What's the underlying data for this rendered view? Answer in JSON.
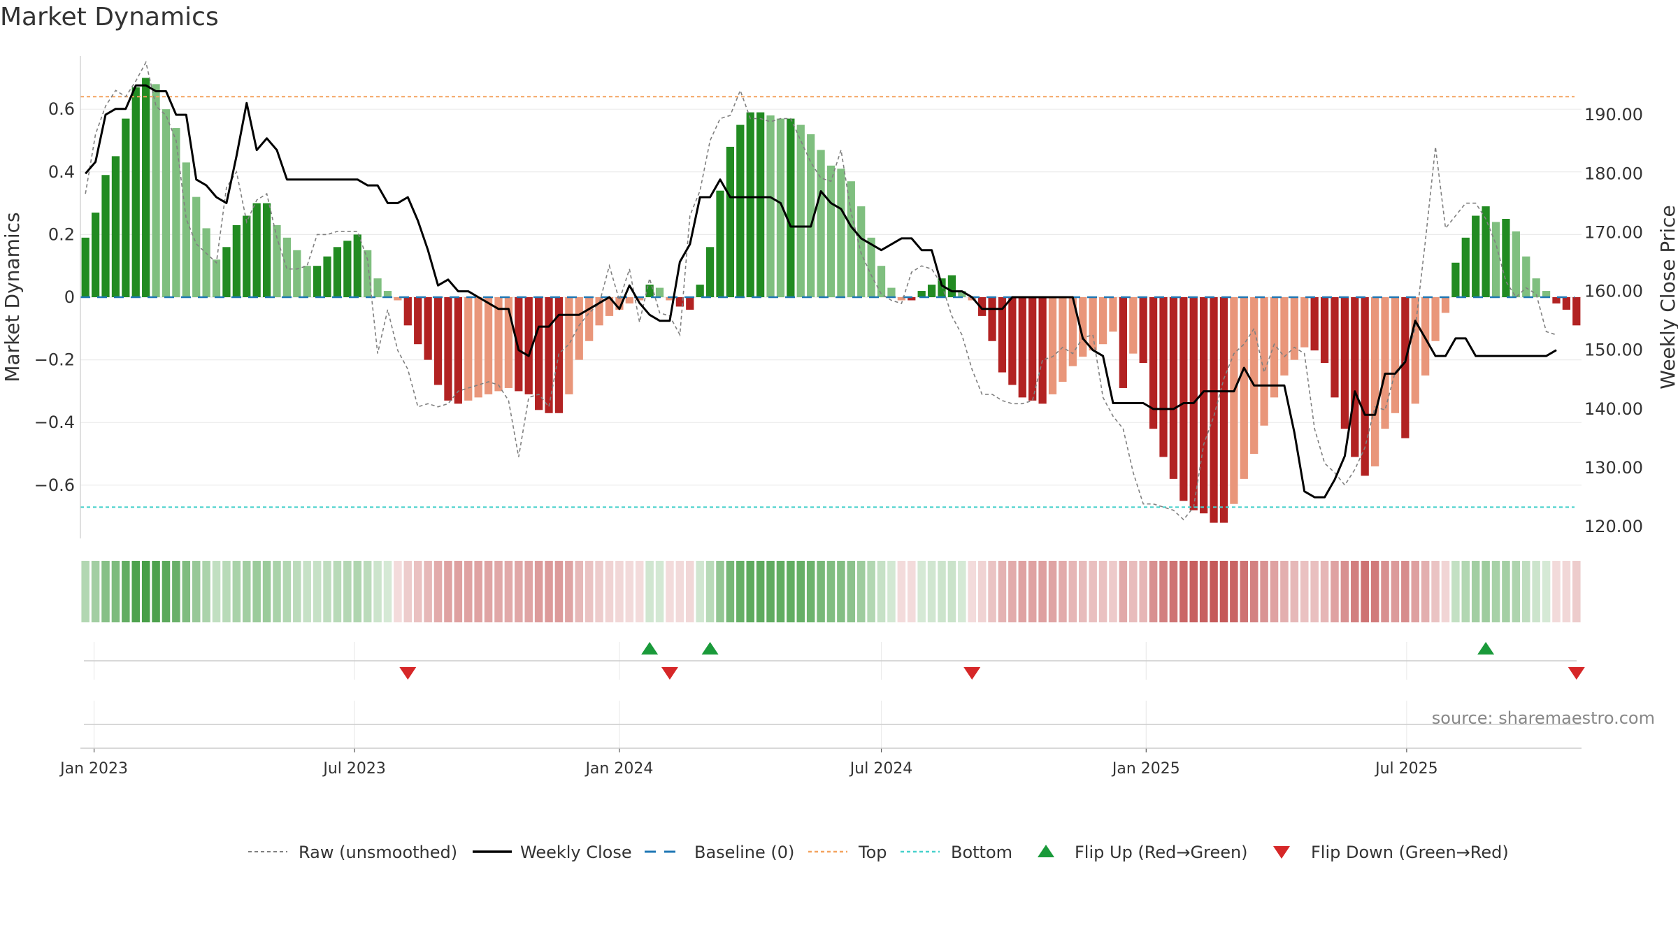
{
  "title": "Market Dynamics",
  "source": "source: sharemaestro.com",
  "colors": {
    "up_strong": "#228b22",
    "up_weak": "#7fbf7f",
    "down_strong": "#b22222",
    "down_weak": "#e9967a",
    "close": "#000000",
    "raw": "#808080",
    "baseline": "#1f77b4",
    "top": "#f4a460",
    "bottom": "#48d1cc",
    "flip_up": "#1a9a3a",
    "flip_down": "#d62728"
  },
  "chart_data": {
    "type": "bar",
    "x_axis": {
      "type": "date",
      "start": "2022-12-26",
      "step_days": 7,
      "ticks": [
        {
          "date": "2023-01-01",
          "label": "Jan 2023"
        },
        {
          "date": "2023-07-01",
          "label": "Jul 2023"
        },
        {
          "date": "2024-01-01",
          "label": "Jan 2024"
        },
        {
          "date": "2024-07-01",
          "label": "Jul 2024"
        },
        {
          "date": "2025-01-01",
          "label": "Jan 2025"
        },
        {
          "date": "2025-07-01",
          "label": "Jul 2025"
        }
      ]
    },
    "y_left": {
      "label": "Market Dynamics",
      "range": [
        -0.77,
        0.77
      ],
      "ticks": [
        {
          "value": 0.6,
          "label": "0.6"
        },
        {
          "value": 0.4,
          "label": "0.4"
        },
        {
          "value": 0.2,
          "label": "0.2"
        },
        {
          "value": 0,
          "label": "0"
        },
        {
          "value": -0.2,
          "label": "−0.2"
        },
        {
          "value": -0.4,
          "label": "−0.4"
        },
        {
          "value": -0.6,
          "label": "−0.6"
        }
      ]
    },
    "y_right": {
      "label": "Weekly Close Price",
      "range": [
        118,
        200
      ],
      "ticks": [
        {
          "value": 190,
          "label": "190.00"
        },
        {
          "value": 180,
          "label": "180.00"
        },
        {
          "value": 170,
          "label": "170.00"
        },
        {
          "value": 160,
          "label": "160.00"
        },
        {
          "value": 150,
          "label": "150.00"
        },
        {
          "value": 140,
          "label": "140.00"
        },
        {
          "value": 130,
          "label": "130.00"
        },
        {
          "value": 120,
          "label": "120.00"
        }
      ]
    },
    "top_level": 0.64,
    "bottom_level": -0.67,
    "baseline": 0,
    "grid": true,
    "series": [
      {
        "name": "Market Dynamics",
        "kind": "bar",
        "values": [
          0.19,
          0.27,
          0.39,
          0.45,
          0.57,
          0.67,
          0.7,
          0.68,
          0.6,
          0.54,
          0.43,
          0.32,
          0.22,
          0.12,
          0.16,
          0.23,
          0.26,
          0.3,
          0.3,
          0.23,
          0.19,
          0.15,
          0.1,
          0.1,
          0.13,
          0.16,
          0.18,
          0.2,
          0.15,
          0.06,
          0.02,
          -0.01,
          -0.09,
          -0.15,
          -0.2,
          -0.28,
          -0.33,
          -0.34,
          -0.33,
          -0.32,
          -0.31,
          -0.3,
          -0.29,
          -0.3,
          -0.31,
          -0.36,
          -0.37,
          -0.37,
          -0.31,
          -0.2,
          -0.14,
          -0.09,
          -0.06,
          -0.04,
          -0.02,
          -0.01,
          0.04,
          0.03,
          -0.01,
          -0.03,
          -0.04,
          0.04,
          0.16,
          0.34,
          0.48,
          0.55,
          0.59,
          0.59,
          0.58,
          0.57,
          0.57,
          0.55,
          0.52,
          0.47,
          0.42,
          0.41,
          0.37,
          0.29,
          0.19,
          0.1,
          0.03,
          -0.01,
          -0.01,
          0.02,
          0.04,
          0.06,
          0.07,
          0.02,
          -0.01,
          -0.06,
          -0.14,
          -0.24,
          -0.28,
          -0.32,
          -0.33,
          -0.34,
          -0.31,
          -0.27,
          -0.22,
          -0.19,
          -0.17,
          -0.15,
          -0.11,
          -0.29,
          -0.18,
          -0.21,
          -0.42,
          -0.51,
          -0.58,
          -0.65,
          -0.68,
          -0.69,
          -0.72,
          -0.72,
          -0.66,
          -0.58,
          -0.5,
          -0.41,
          -0.32,
          -0.25,
          -0.2,
          -0.16,
          -0.17,
          -0.21,
          -0.32,
          -0.42,
          -0.51,
          -0.57,
          -0.54,
          -0.42,
          -0.37,
          -0.45,
          -0.34,
          -0.25,
          -0.14,
          -0.05,
          0.11,
          0.19,
          0.26,
          0.29,
          0.24,
          0.25,
          0.21,
          0.13,
          0.06,
          0.02,
          -0.02,
          -0.04,
          -0.09
        ]
      },
      {
        "name": "Raw (unsmoothed)",
        "kind": "line",
        "values": [
          0.33,
          0.52,
          0.61,
          0.66,
          0.64,
          0.69,
          0.75,
          0.61,
          0.58,
          0.5,
          0.25,
          0.17,
          0.14,
          0.11,
          0.35,
          0.4,
          0.24,
          0.31,
          0.33,
          0.19,
          0.09,
          0.09,
          0.1,
          0.2,
          0.2,
          0.21,
          0.21,
          0.21,
          0.12,
          -0.18,
          -0.04,
          -0.17,
          -0.23,
          -0.35,
          -0.34,
          -0.35,
          -0.34,
          -0.3,
          -0.29,
          -0.28,
          -0.27,
          -0.28,
          -0.33,
          -0.51,
          -0.32,
          -0.31,
          -0.35,
          -0.18,
          -0.15,
          -0.09,
          -0.05,
          -0.02,
          0.1,
          -0.01,
          0.09,
          -0.08,
          0.06,
          -0.05,
          -0.06,
          -0.12,
          0.26,
          0.34,
          0.5,
          0.57,
          0.58,
          0.66,
          0.57,
          0.57,
          0.56,
          0.57,
          0.57,
          0.5,
          0.43,
          0.38,
          0.37,
          0.47,
          0.27,
          0.14,
          0.07,
          0.01,
          -0.01,
          -0.02,
          0.08,
          0.1,
          0.09,
          0.04,
          -0.06,
          -0.12,
          -0.23,
          -0.31,
          -0.31,
          -0.33,
          -0.34,
          -0.34,
          -0.33,
          -0.2,
          -0.19,
          -0.16,
          -0.18,
          -0.13,
          -0.12,
          -0.32,
          -0.38,
          -0.42,
          -0.56,
          -0.66,
          -0.66,
          -0.67,
          -0.68,
          -0.71,
          -0.67,
          -0.47,
          -0.38,
          -0.26,
          -0.18,
          -0.15,
          -0.1,
          -0.24,
          -0.15,
          -0.19,
          -0.16,
          -0.18,
          -0.42,
          -0.53,
          -0.56,
          -0.6,
          -0.55,
          -0.48,
          -0.35,
          -0.36,
          -0.24,
          -0.2,
          -0.1,
          0.18,
          0.48,
          0.22,
          0.26,
          0.3,
          0.3,
          0.25,
          0.17,
          0.05,
          0.0,
          0.03,
          0.01,
          -0.11,
          -0.12
        ]
      },
      {
        "name": "Weekly Close",
        "kind": "line",
        "axis": "right",
        "values": [
          180,
          182,
          190,
          191,
          191,
          195,
          195,
          194,
          194,
          190,
          190,
          179,
          178,
          176,
          175,
          183,
          192,
          184,
          186,
          184,
          179,
          179,
          179,
          179,
          179,
          179,
          179,
          179,
          178,
          178,
          175,
          175,
          176,
          172,
          167,
          161,
          162,
          160,
          160,
          159,
          158,
          157,
          157,
          150,
          149,
          154,
          154,
          156,
          156,
          156,
          157,
          158,
          159,
          157,
          161,
          158,
          156,
          155,
          155,
          165,
          168,
          176,
          176,
          179,
          176,
          176,
          176,
          176,
          176,
          175,
          171,
          171,
          171,
          177,
          175,
          174,
          171,
          169,
          168,
          167,
          168,
          169,
          169,
          167,
          167,
          161,
          160,
          160,
          159,
          157,
          157,
          157,
          159,
          159,
          159,
          159,
          159,
          159,
          159,
          152,
          150,
          149,
          141,
          141,
          141,
          141,
          140,
          140,
          140,
          141,
          141,
          143,
          143,
          143,
          143,
          147,
          144,
          144,
          144,
          144,
          136,
          126,
          125,
          125,
          128,
          132,
          143,
          139,
          139,
          146,
          146,
          148,
          155,
          152,
          149,
          149,
          152,
          152,
          149,
          149,
          149,
          149,
          149,
          149,
          149,
          149,
          150
        ]
      },
      {
        "name": "Baseline (0)",
        "kind": "line",
        "value": 0
      },
      {
        "name": "Top",
        "kind": "line",
        "value": 0.64
      },
      {
        "name": "Bottom",
        "kind": "line",
        "value": -0.67
      },
      {
        "name": "Flip Up (Red→Green)",
        "kind": "marker",
        "indices": [
          56,
          62,
          139
        ]
      },
      {
        "name": "Flip Down (Green→Red)",
        "kind": "marker",
        "indices": [
          32,
          58,
          88,
          148
        ]
      }
    ],
    "legend": {
      "placement": "bottom-center",
      "entries": [
        {
          "label": "Raw (unsmoothed)",
          "style": "dotted-gray"
        },
        {
          "label": "Weekly Close",
          "style": "solid-black"
        },
        {
          "label": "Baseline (0)",
          "style": "dashed-blue"
        },
        {
          "label": "Top",
          "style": "dashed-orange"
        },
        {
          "label": "Bottom",
          "style": "dashed-cyan"
        },
        {
          "label": "Flip Up (Red→Green)",
          "style": "triangle-up-green"
        },
        {
          "label": "Flip Down (Green→Red)",
          "style": "triangle-down-red"
        }
      ]
    }
  }
}
